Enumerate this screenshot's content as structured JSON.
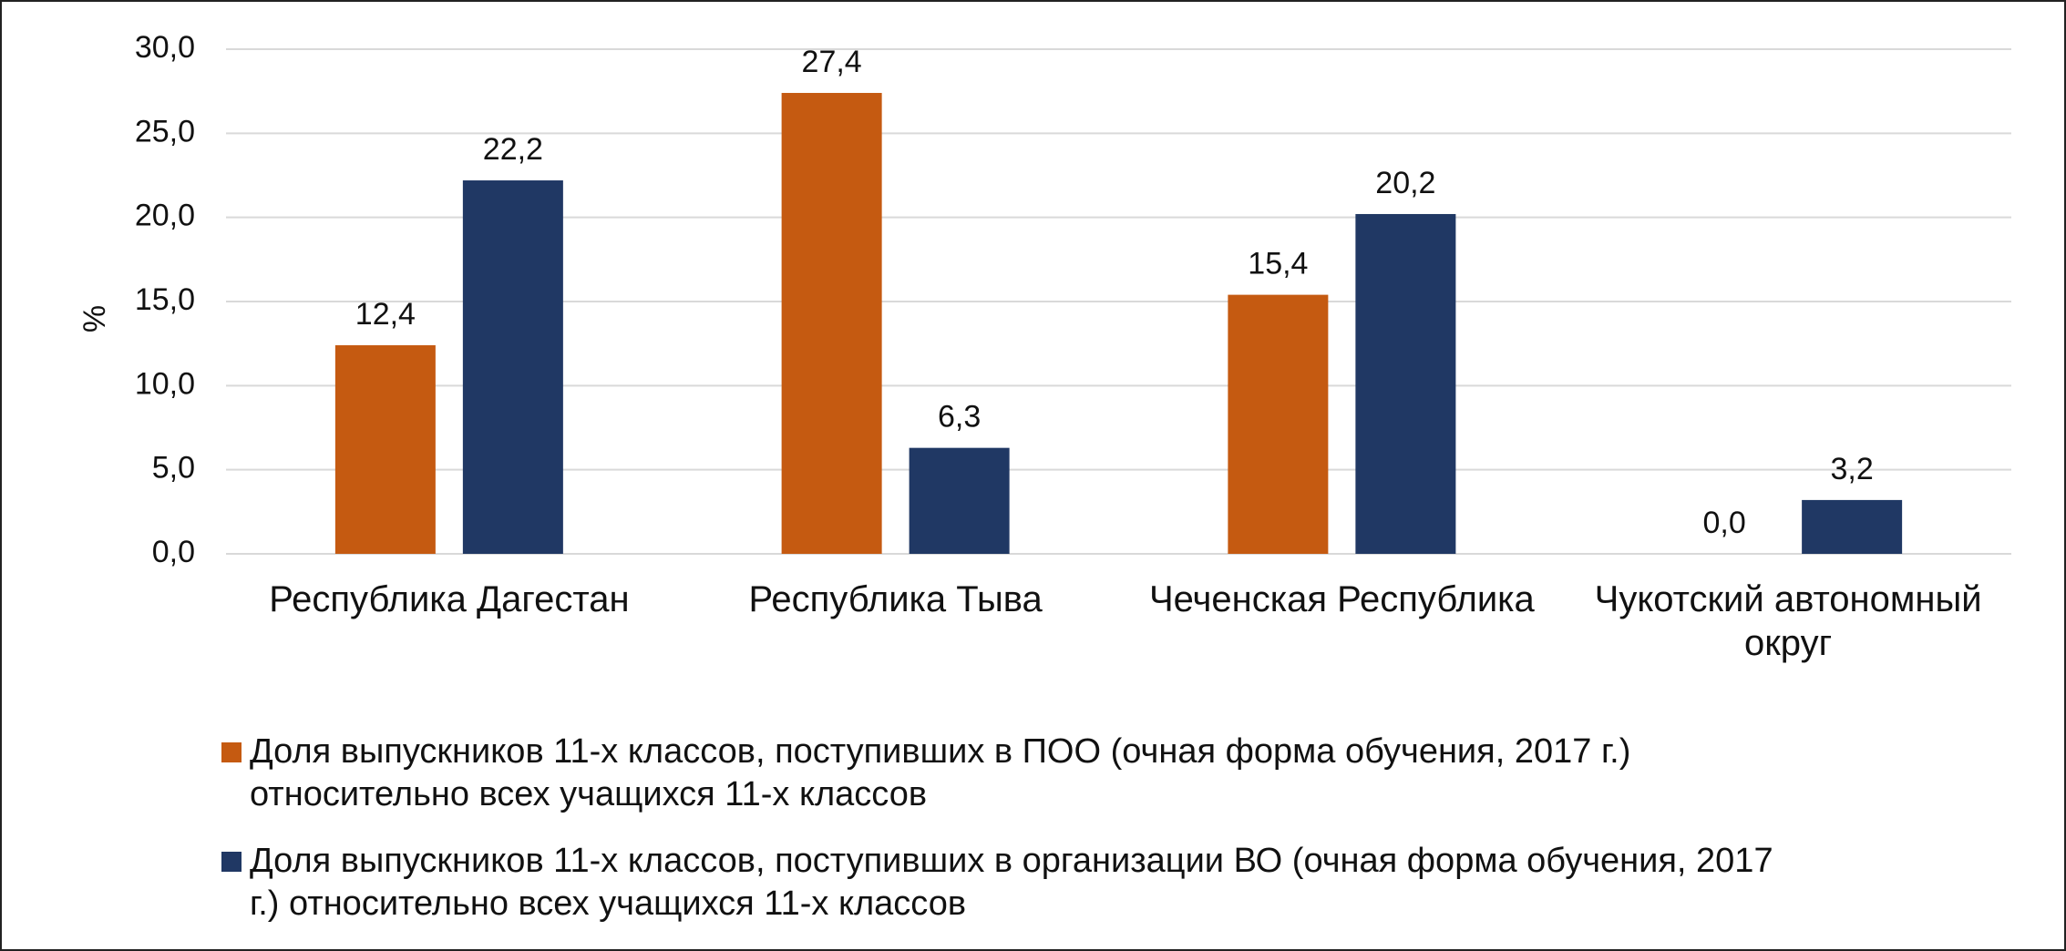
{
  "chart_data": {
    "type": "bar",
    "ylabel": "%",
    "categories": [
      "Республика Дагестан",
      "Республика Тыва",
      "Чеченская Республика",
      "Чукотский автономный округ"
    ],
    "series": [
      {
        "name": "Доля выпускников 11-х классов, поступивших в ПОО (очная форма обучения, 2017 г.) относительно всех учащихся 11-х классов",
        "color": "#c55a11",
        "values": [
          12.4,
          27.4,
          15.4,
          0
        ],
        "value_labels": [
          "12,4",
          "27,4",
          "15,4",
          "0,0"
        ]
      },
      {
        "name": "Доля выпускников 11-х классов, поступивших в организации ВО (очная форма обучения, 2017 г.) относительно всех учащихся 11-х классов",
        "color": "#203864",
        "values": [
          22.2,
          6.3,
          20.2,
          3.2
        ],
        "value_labels": [
          "22,2",
          "6,3",
          "20,2",
          "3,2"
        ]
      }
    ],
    "ylim": [
      0,
      30
    ],
    "yticks": [
      {
        "value": 0,
        "label": "0,0"
      },
      {
        "value": 5,
        "label": "5,0"
      },
      {
        "value": 10,
        "label": "10,0"
      },
      {
        "value": 15,
        "label": "15,0"
      },
      {
        "value": 20,
        "label": "20,0"
      },
      {
        "value": 25,
        "label": "25,0"
      },
      {
        "value": 30,
        "label": "30,0"
      }
    ],
    "grid": true,
    "legend": "bottom"
  }
}
